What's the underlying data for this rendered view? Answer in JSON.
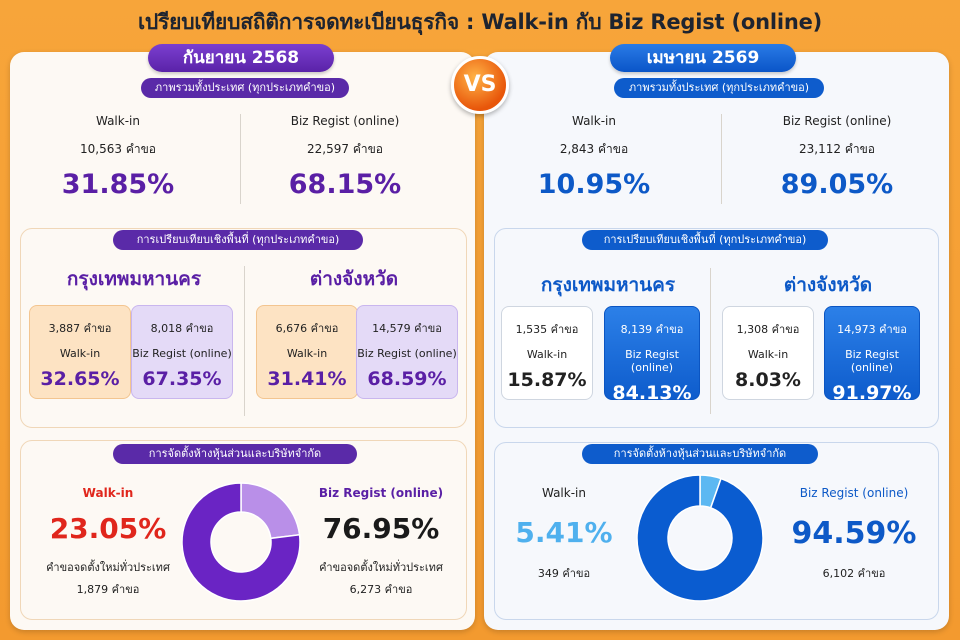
{
  "title": "เปรียบเทียบสถิติการจดทะเบียนธุรกิจ : Walk-in กับ Biz Regist (online)",
  "vs_label": "VS",
  "colors": {
    "purple": "#5a1fa5",
    "lavender": "#b98fe8",
    "blue": "#0d59c7",
    "light_blue": "#5cb8f2",
    "red": "#e0261c"
  },
  "left": {
    "period": "กันยายน 2568",
    "overall": {
      "pill": "ภาพรวมทั้งประเทศ (ทุกประเภทคำขอ)",
      "walkin": {
        "label": "Walk-in",
        "count": "10,563",
        "unit": "คำขอ",
        "pct": "31.85%"
      },
      "online": {
        "label": "Biz Regist (online)",
        "count": "22,597",
        "unit": "คำขอ",
        "pct": "68.15%"
      }
    },
    "area": {
      "pill": "การเปรียบเทียบเชิงพื้นที่ (ทุกประเภทคำขอ)",
      "bkk": {
        "title": "กรุงเทพมหานคร",
        "walkin": {
          "count": "3,887",
          "unit": "คำขอ",
          "label": "Walk-in",
          "pct": "32.65%"
        },
        "online": {
          "count": "8,018",
          "unit": "คำขอ",
          "label": "Biz Regist (online)",
          "pct": "67.35%"
        }
      },
      "prov": {
        "title": "ต่างจังหวัด",
        "walkin": {
          "count": "6,676",
          "unit": "คำขอ",
          "label": "Walk-in",
          "pct": "31.41%"
        },
        "online": {
          "count": "14,579",
          "unit": "คำขอ",
          "label": "Biz Regist (online)",
          "pct": "68.59%"
        }
      }
    },
    "company": {
      "pill": "การจัดตั้งห้างหุ้นส่วนและบริษัทจำกัด",
      "walkin": {
        "label": "Walk-in",
        "pct": "23.05%",
        "desc": "คำขอจดตั้งใหม่ทั่วประเทศ",
        "count": "1,879 คำขอ"
      },
      "online": {
        "label": "Biz Regist (online)",
        "pct": "76.95%",
        "desc": "คำขอจดตั้งใหม่ทั่วประเทศ",
        "count": "6,273 คำขอ"
      }
    }
  },
  "right": {
    "period": "เมษายน 2569",
    "overall": {
      "pill": "ภาพรวมทั้งประเทศ (ทุกประเภทคำขอ)",
      "walkin": {
        "label": "Walk-in",
        "count": "2,843",
        "unit": "คำขอ",
        "pct": "10.95%"
      },
      "online": {
        "label": "Biz Regist (online)",
        "count": "23,112",
        "unit": "คำขอ",
        "pct": "89.05%"
      }
    },
    "area": {
      "pill": "การเปรียบเทียบเชิงพื้นที่ (ทุกประเภทคำขอ)",
      "bkk": {
        "title": "กรุงเทพมหานคร",
        "walkin": {
          "count": "1,535",
          "unit": "คำขอ",
          "label": "Walk-in",
          "pct": "15.87%"
        },
        "online": {
          "count": "8,139",
          "unit": "คำขอ",
          "label": "Biz Regist (online)",
          "pct": "84.13%"
        }
      },
      "prov": {
        "title": "ต่างจังหวัด",
        "walkin": {
          "count": "1,308",
          "unit": "คำขอ",
          "label": "Walk-in",
          "pct": "8.03%"
        },
        "online": {
          "count": "14,973",
          "unit": "คำขอ",
          "label": "Biz Regist (online)",
          "pct": "91.97%"
        }
      }
    },
    "company": {
      "pill": "การจัดตั้งห้างหุ้นส่วนและบริษัทจำกัด",
      "walkin": {
        "label": "Walk-in",
        "pct": "5.41%",
        "count": "349  คำขอ"
      },
      "online": {
        "label": "Biz Regist (online)",
        "pct": "94.59%",
        "count": "6,102  คำขอ"
      }
    }
  },
  "chart_data": [
    {
      "type": "pie",
      "categories": [
        "Walk-in",
        "Biz Regist (online)"
      ],
      "values": [
        23.05,
        76.95
      ],
      "colors": [
        "#b98fe8",
        "#6a24c4"
      ]
    },
    {
      "type": "pie",
      "categories": [
        "Walk-in",
        "Biz Regist (online)"
      ],
      "values": [
        5.41,
        94.59
      ],
      "colors": [
        "#5cb8f2",
        "#0a5cd0"
      ]
    }
  ]
}
